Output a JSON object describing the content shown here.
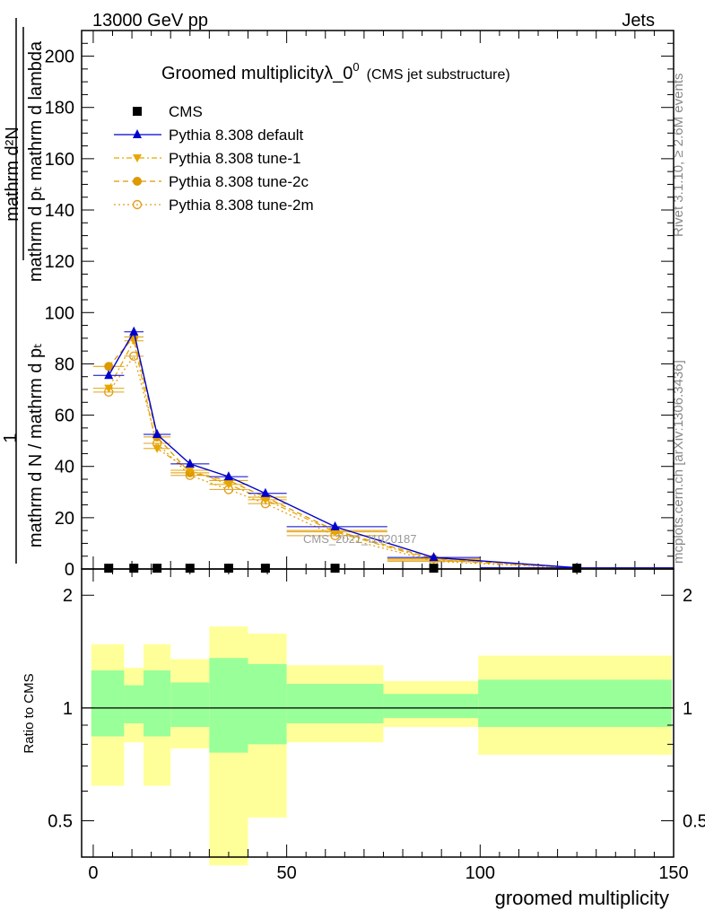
{
  "header": {
    "left": "13000 GeV pp",
    "right": "Jets"
  },
  "title": {
    "main": "Groomed multiplicityλ_0",
    "sup": "0",
    "sub": "(CMS jet substructure)"
  },
  "side_labels": {
    "rivet": "Rivet 3.1.10, ≥ 2.6M events",
    "mcplots": "mcplots.cern.ch [arXiv:1306.3436]"
  },
  "watermark": "CMS_2021_I1920187",
  "chart_data": [
    {
      "type": "line",
      "panel": "main",
      "ylabel": {
        "prefix": "1",
        "numerator": "mathrm d²N",
        "denominator": "mathrm d pₜ mathrm d lambda",
        "divider": "mathrm d N / mathrm d pₜ"
      },
      "ylim": [
        0,
        210
      ],
      "xlim": [
        -3,
        150
      ],
      "yticks": [
        0,
        20,
        40,
        60,
        80,
        100,
        120,
        140,
        160,
        180,
        200
      ],
      "ytick_labels": [
        "0",
        "20",
        "40",
        "60",
        "80",
        "100",
        "120",
        "140",
        "160",
        "180",
        "200"
      ],
      "legend_position": "top-left",
      "bins": [
        {
          "x": 4,
          "lo": 0,
          "hi": 8
        },
        {
          "x": 10.5,
          "lo": 8,
          "hi": 13
        },
        {
          "x": 16.5,
          "lo": 13,
          "hi": 20
        },
        {
          "x": 25,
          "lo": 20,
          "hi": 30
        },
        {
          "x": 35,
          "lo": 30,
          "hi": 40
        },
        {
          "x": 44.5,
          "lo": 40,
          "hi": 50
        },
        {
          "x": 62.5,
          "lo": 50,
          "hi": 76
        },
        {
          "x": 88,
          "lo": 76,
          "hi": 100
        },
        {
          "x": 125,
          "lo": 100,
          "hi": 150
        }
      ],
      "series": [
        {
          "name": "CMS",
          "color": "#000000",
          "marker": "square",
          "line": "none",
          "values": [
            0.3,
            0.3,
            0.3,
            0.3,
            0.3,
            0.3,
            0.3,
            0.3,
            0.3
          ]
        },
        {
          "name": "Pythia 8.308 default",
          "color": "#0000cc",
          "marker": "triangle-up",
          "line": "solid",
          "values": [
            75.5,
            92.5,
            52.5,
            41,
            36,
            29.5,
            16.5,
            4.5,
            0.5
          ]
        },
        {
          "name": "Pythia 8.308 tune-1",
          "color": "#e8a600",
          "marker": "triangle-down",
          "line": "dashdot",
          "values": [
            70.5,
            89,
            47,
            38.5,
            33,
            27,
            14.5,
            3.5,
            0.4
          ]
        },
        {
          "name": "Pythia 8.308 tune-2c",
          "color": "#dd9900",
          "marker": "circle",
          "line": "dashed",
          "values": [
            79,
            90.5,
            51.5,
            37.5,
            34.5,
            28,
            15,
            4,
            0.4
          ]
        },
        {
          "name": "Pythia 8.308 tune-2m",
          "color": "#e0a020",
          "marker": "circle-open",
          "line": "dotted",
          "values": [
            69,
            83,
            49,
            36.5,
            31,
            25.5,
            13,
            3,
            0.3
          ]
        }
      ]
    },
    {
      "type": "area",
      "panel": "ratio",
      "ylabel": "Ratio to CMS",
      "xlabel": "groomed multiplicity",
      "ylim": [
        0.4,
        2.35
      ],
      "yscale": "log",
      "yticks": [
        0.5,
        1,
        2
      ],
      "ytick_labels": [
        "0.5",
        "1",
        "2"
      ],
      "xticks": [
        0,
        50,
        100,
        150
      ],
      "xtick_labels": [
        "0",
        "50",
        "100",
        "150"
      ],
      "reference": 1,
      "bands": [
        {
          "lo": -0.5,
          "hi": 8,
          "inner": [
            0.84,
            1.26
          ],
          "outer": [
            0.62,
            1.48
          ]
        },
        {
          "lo": 8,
          "hi": 13,
          "inner": [
            0.91,
            1.15
          ],
          "outer": [
            0.81,
            1.28
          ]
        },
        {
          "lo": 13,
          "hi": 20,
          "inner": [
            0.84,
            1.26
          ],
          "outer": [
            0.62,
            1.48
          ]
        },
        {
          "lo": 20,
          "hi": 30,
          "inner": [
            0.89,
            1.17
          ],
          "outer": [
            0.78,
            1.35
          ]
        },
        {
          "lo": 30,
          "hi": 40,
          "inner": [
            0.76,
            1.36
          ],
          "outer": [
            0.38,
            1.65
          ]
        },
        {
          "lo": 40,
          "hi": 50,
          "inner": [
            0.8,
            1.31
          ],
          "outer": [
            0.51,
            1.58
          ]
        },
        {
          "lo": 50,
          "hi": 75,
          "inner": [
            0.91,
            1.16
          ],
          "outer": [
            0.81,
            1.3
          ]
        },
        {
          "lo": 75,
          "hi": 99.5,
          "inner": [
            0.94,
            1.09
          ],
          "outer": [
            0.89,
            1.18
          ]
        },
        {
          "lo": 99.5,
          "hi": 149.5,
          "inner": [
            0.89,
            1.19
          ],
          "outer": [
            0.75,
            1.38
          ]
        }
      ],
      "colors": {
        "inner": "#99ff99",
        "outer": "#ffff99",
        "axis": "#000000"
      }
    }
  ]
}
